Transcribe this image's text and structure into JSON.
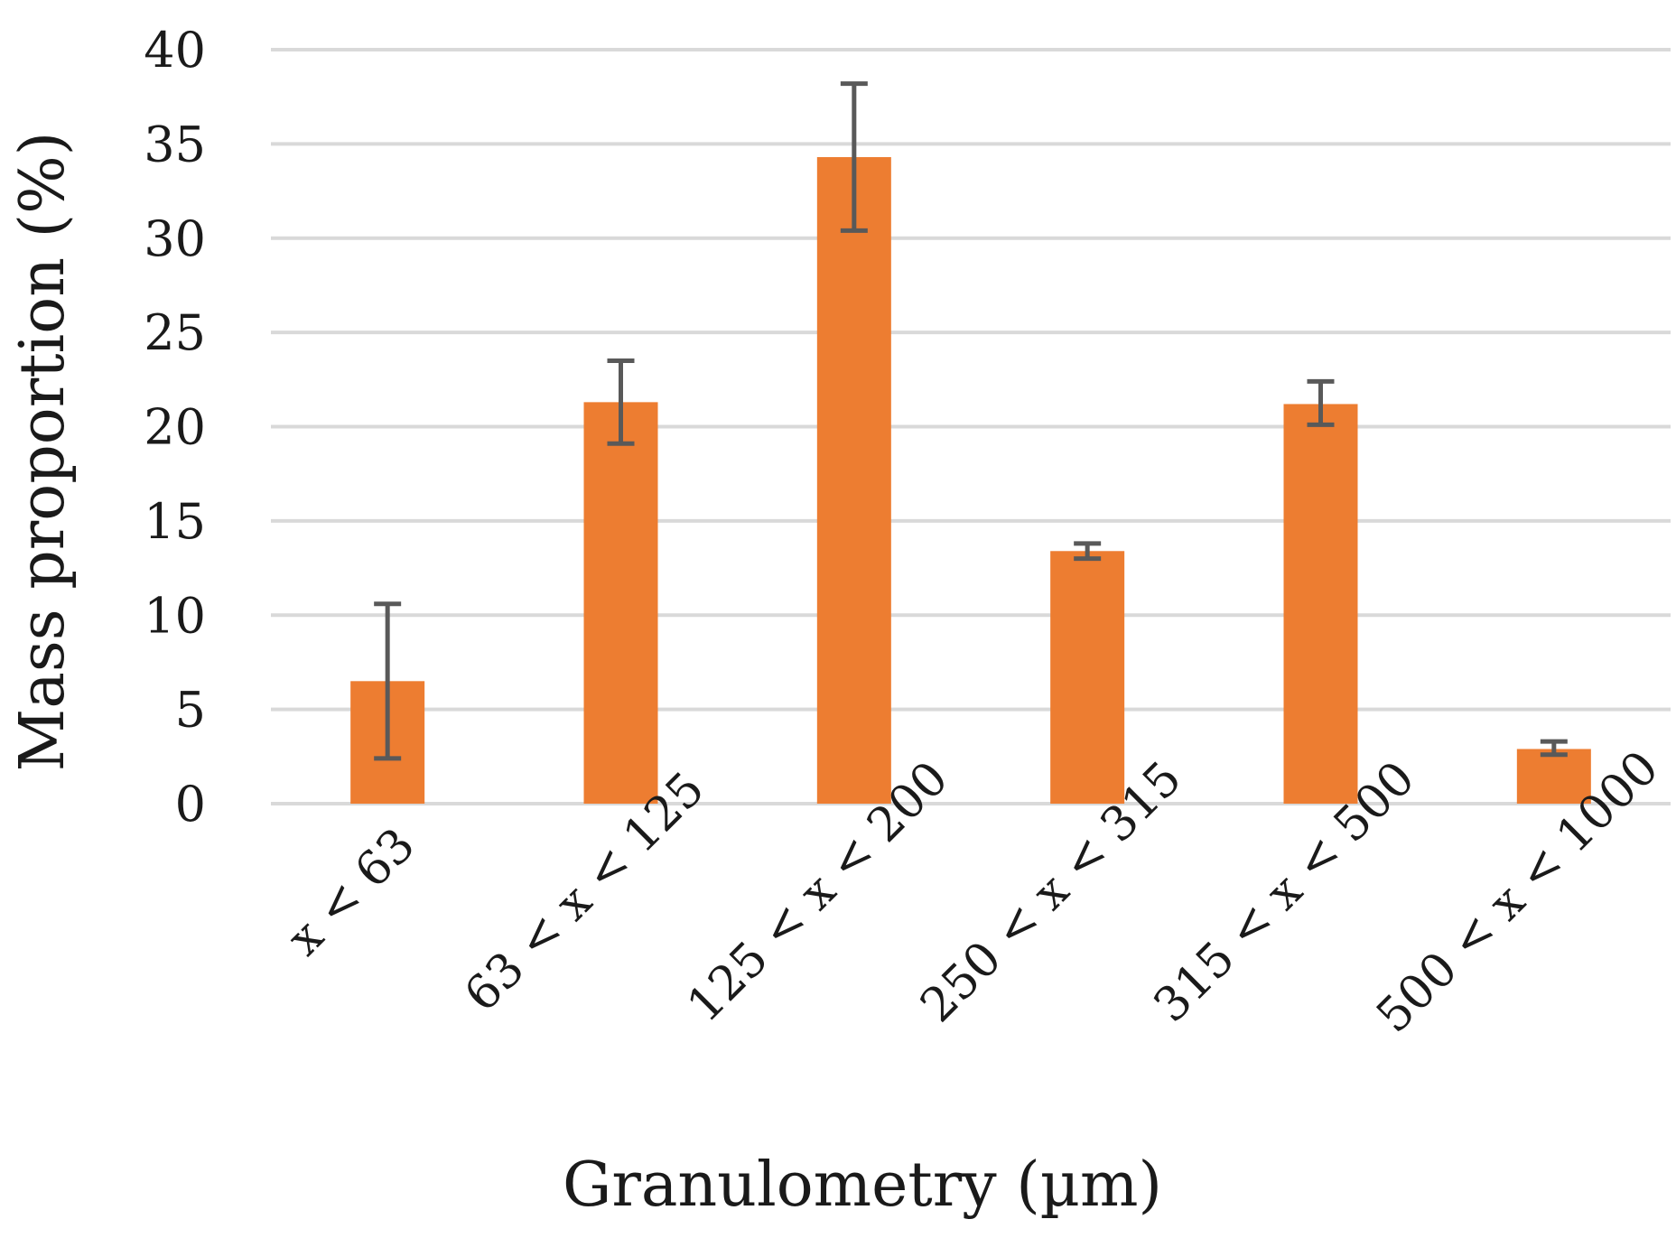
{
  "chart_data": {
    "type": "bar",
    "xlabel": "Granulometry (µm)",
    "ylabel": "Mass proportion (%)",
    "categories": [
      "x < 63",
      "63 < x < 125",
      "125 < x < 200",
      "250 < x < 315",
      "315 < x < 500",
      "500 < x < 1000"
    ],
    "values": [
      6.5,
      21.3,
      34.3,
      13.4,
      21.2,
      2.9
    ],
    "error_low": [
      2.4,
      19.1,
      30.4,
      13.0,
      20.1,
      2.6
    ],
    "error_high": [
      10.6,
      23.5,
      38.2,
      13.8,
      22.4,
      3.3
    ],
    "ylim": [
      0,
      40
    ],
    "yticks": [
      0,
      5,
      10,
      15,
      20,
      25,
      30,
      35,
      40
    ],
    "grid": true,
    "legend": "none",
    "colors": {
      "bar": "#ED7D31",
      "error_bar": "#595959",
      "grid": "#D9D9D9"
    }
  }
}
